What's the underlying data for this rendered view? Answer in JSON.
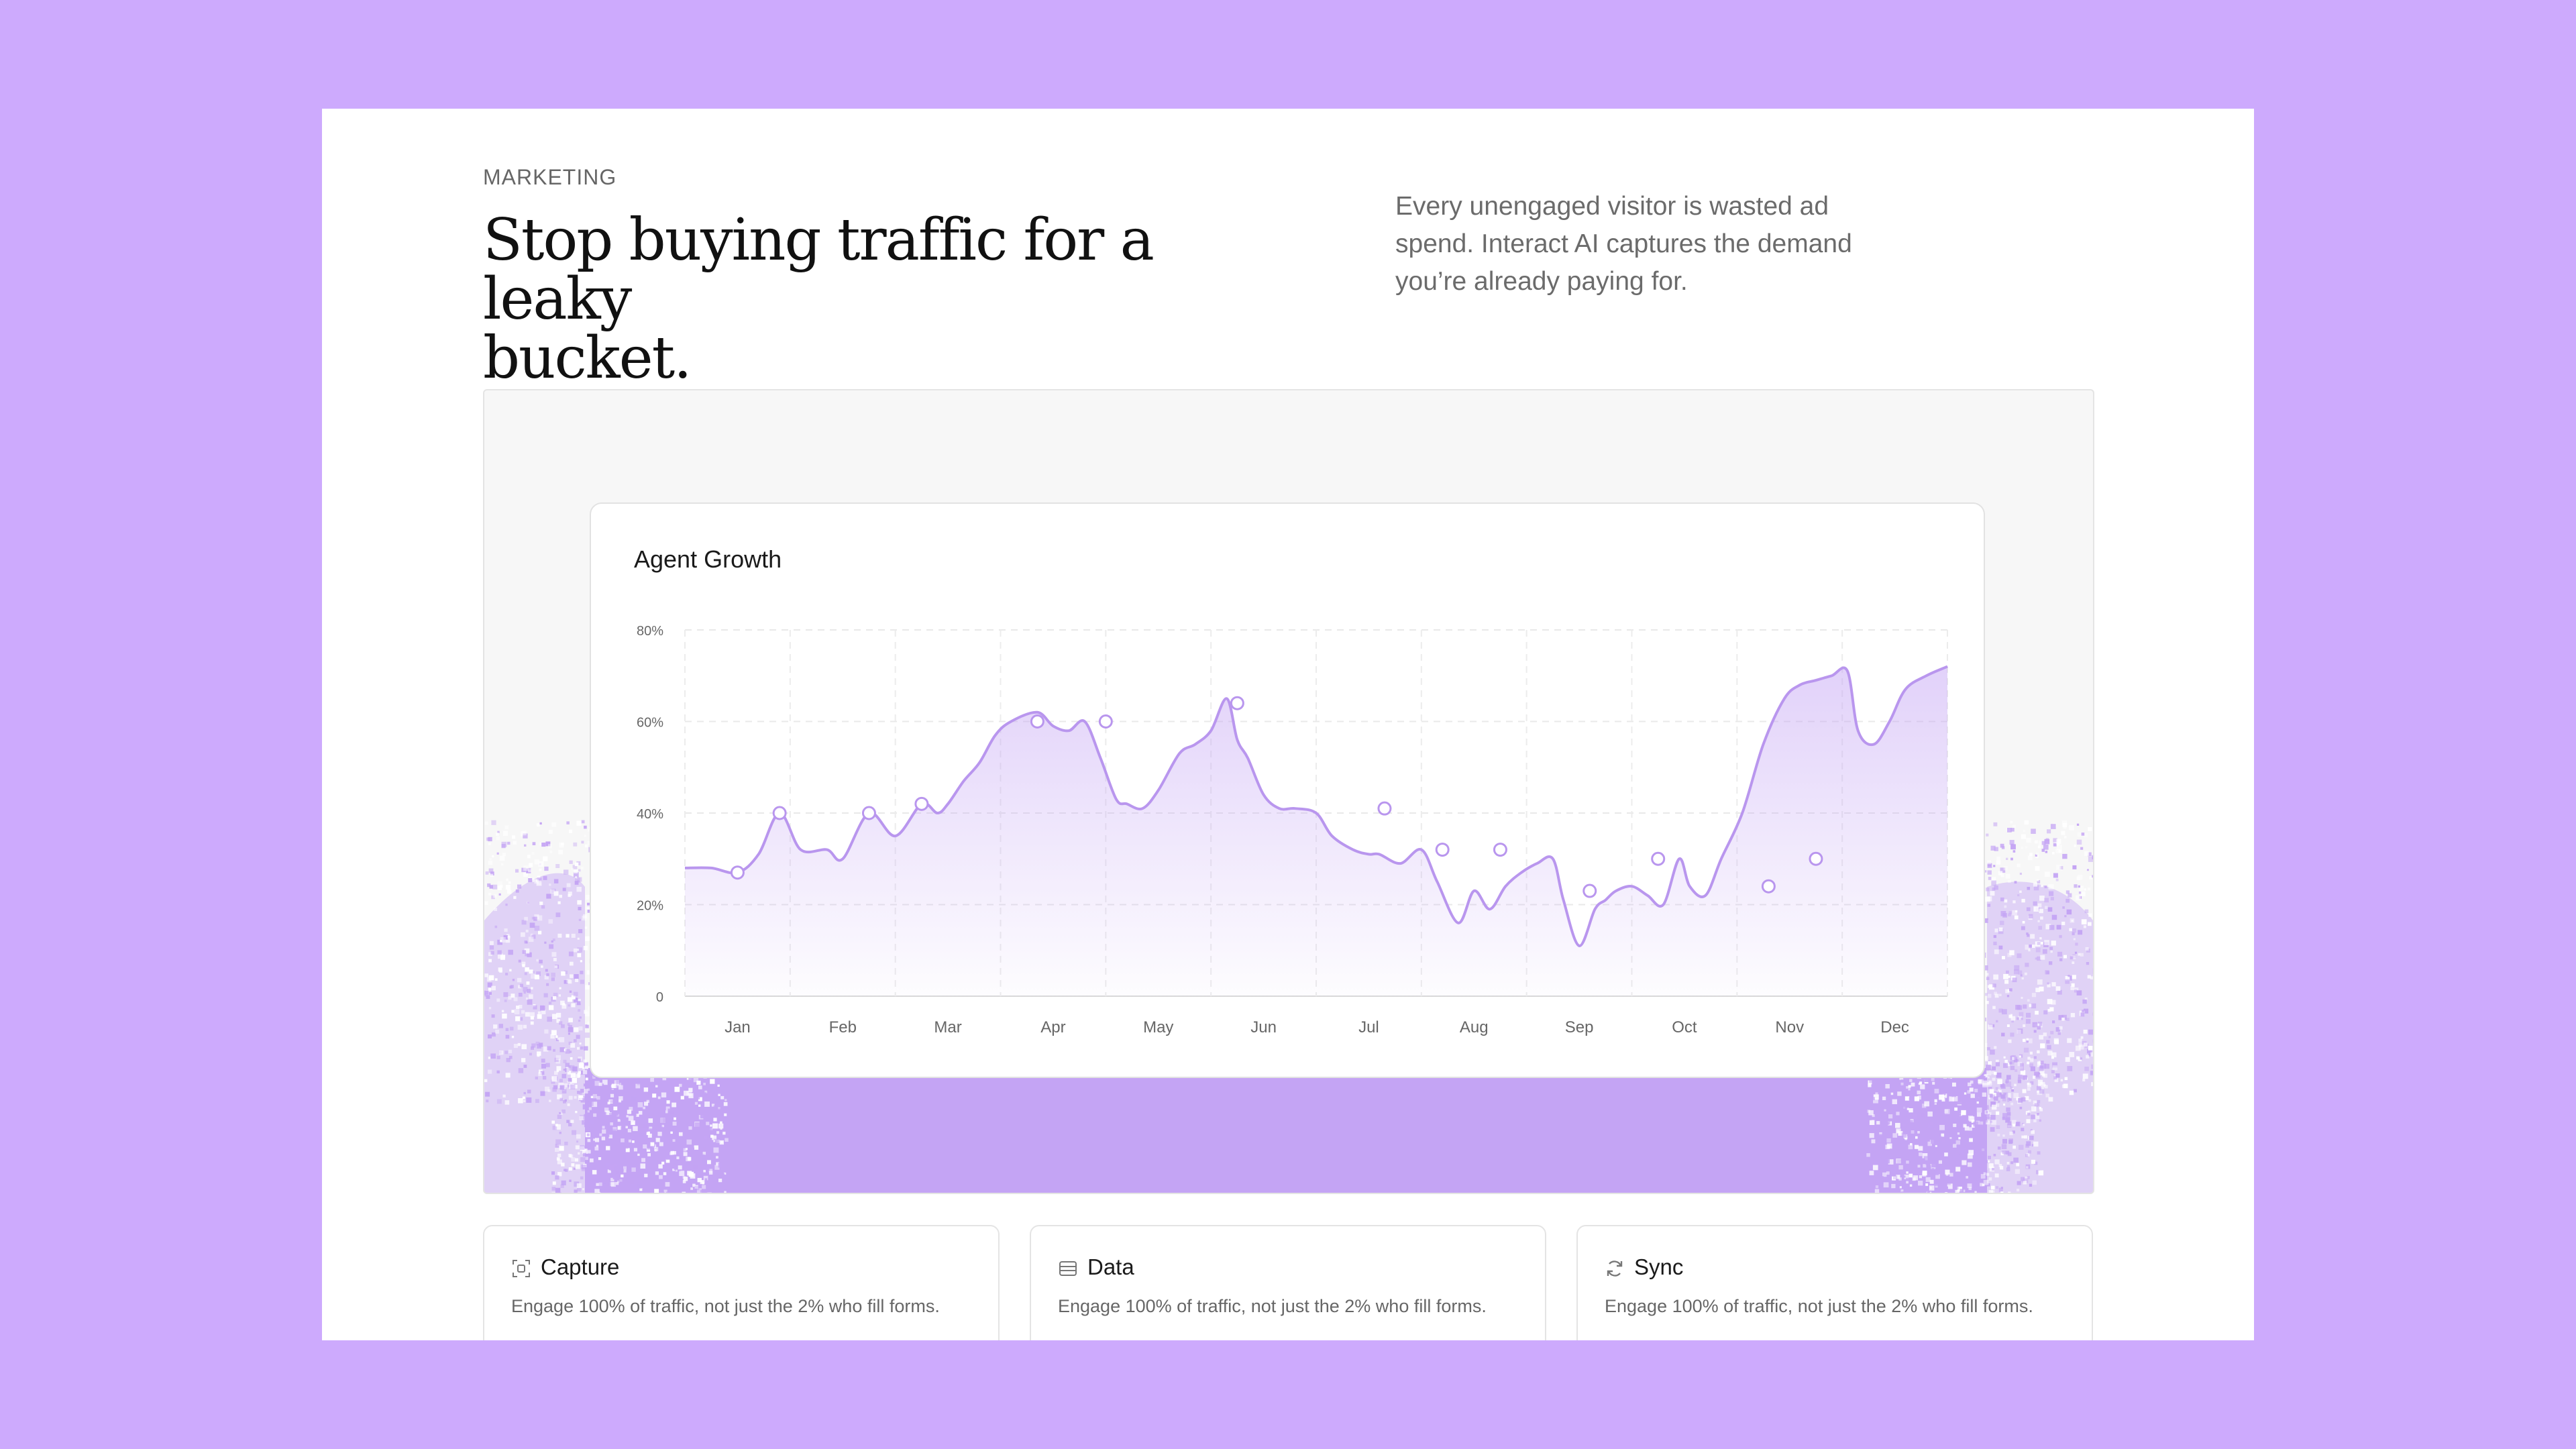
{
  "hero": {
    "eyebrow": "MARKETING",
    "headline_line1": "Stop buying traffic for a leaky",
    "headline_line2": "bucket.",
    "description": "Every unengaged visitor is wasted ad spend. Interact AI captures the demand you’re already paying for."
  },
  "colors": {
    "page_background": "#cdaafd",
    "accent": "#c4a4f4",
    "line": "#b996ee"
  },
  "chart_data": {
    "type": "area",
    "title": "Agent Growth",
    "xlabel": "",
    "ylabel": "",
    "ylim": [
      0,
      80
    ],
    "yticks": [
      0,
      20,
      40,
      60,
      80
    ],
    "ytick_labels": [
      "0",
      "20%",
      "40%",
      "60%",
      "80%"
    ],
    "categories": [
      "Jan",
      "Feb",
      "Mar",
      "Apr",
      "May",
      "Jun",
      "Jul",
      "Aug",
      "Sep",
      "Oct",
      "Nov",
      "Dec"
    ],
    "grid": true,
    "legend": "none",
    "x": [
      0.0,
      0.25,
      0.5,
      0.7,
      0.9,
      1.1,
      1.35,
      1.5,
      1.75,
      2.0,
      2.25,
      2.4,
      2.5,
      2.65,
      2.8,
      2.95,
      3.1,
      3.35,
      3.5,
      3.65,
      3.8,
      3.95,
      4.1,
      4.2,
      4.35,
      4.5,
      4.7,
      4.85,
      5.0,
      5.15,
      5.25,
      5.35,
      5.5,
      5.65,
      5.8,
      6.0,
      6.15,
      6.35,
      6.5,
      6.6,
      6.8,
      7.0,
      7.15,
      7.35,
      7.5,
      7.65,
      7.8,
      7.95,
      8.1,
      8.25,
      8.35,
      8.5,
      8.65,
      8.75,
      8.85,
      9.0,
      9.15,
      9.3,
      9.45,
      9.55,
      9.7,
      9.85,
      10.05,
      10.25,
      10.45,
      10.6,
      10.75,
      10.9,
      11.05,
      11.15,
      11.3,
      11.45,
      11.6,
      11.8,
      12.0
    ],
    "values": [
      28,
      28,
      27,
      31,
      40,
      32,
      32,
      30,
      40,
      35,
      42,
      40,
      42,
      47,
      51,
      57,
      60,
      62,
      59,
      58,
      60,
      52,
      43,
      42,
      41,
      45,
      53,
      55,
      58,
      65,
      56,
      52,
      44,
      41,
      41,
      40,
      35,
      32,
      31,
      31,
      29,
      32,
      25,
      16,
      23,
      19,
      24,
      27,
      29,
      30,
      21,
      11,
      19,
      21,
      23,
      24,
      22,
      20,
      30,
      24,
      22,
      30,
      40,
      55,
      65,
      68,
      69,
      70,
      71,
      58,
      55,
      60,
      67,
      70,
      72
    ],
    "markers": [
      {
        "x": 0.5,
        "y": 27
      },
      {
        "x": 0.9,
        "y": 40
      },
      {
        "x": 1.75,
        "y": 40
      },
      {
        "x": 2.25,
        "y": 42
      },
      {
        "x": 3.35,
        "y": 60
      },
      {
        "x": 4.0,
        "y": 60
      },
      {
        "x": 5.25,
        "y": 64
      },
      {
        "x": 6.65,
        "y": 41
      },
      {
        "x": 7.2,
        "y": 32
      },
      {
        "x": 7.75,
        "y": 32
      },
      {
        "x": 8.6,
        "y": 23
      },
      {
        "x": 9.25,
        "y": 30
      },
      {
        "x": 10.3,
        "y": 24
      },
      {
        "x": 10.75,
        "y": 30
      }
    ]
  },
  "features": [
    {
      "title": "Capture",
      "icon": "capture-icon",
      "description": "Engage 100% of traffic, not just the 2% who fill forms."
    },
    {
      "title": "Data",
      "icon": "data-icon",
      "description": "Engage 100% of traffic, not just the 2% who fill forms."
    },
    {
      "title": "Sync",
      "icon": "sync-icon",
      "description": "Engage 100% of traffic, not just the 2% who fill forms."
    }
  ]
}
